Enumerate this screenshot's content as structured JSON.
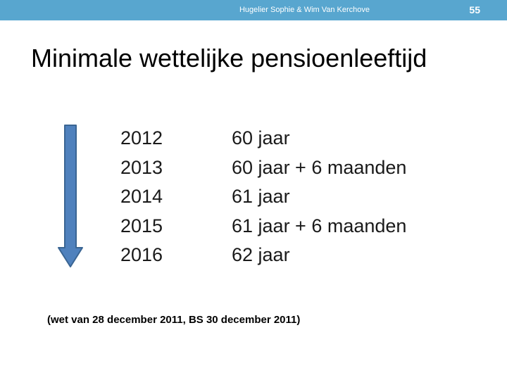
{
  "header": {
    "authors": "Hugelier Sophie & Wim Van Kerchove",
    "slide_number": "55"
  },
  "title": "Minimale wettelijke pensioenleeftijd",
  "arrow_icon": "down-arrow-icon",
  "colors": {
    "header_bar": "#58a6cf",
    "arrow_fill": "#4f81bd",
    "arrow_stroke": "#3a6593"
  },
  "table": {
    "rows": [
      {
        "year": "2012",
        "age": "60 jaar"
      },
      {
        "year": "2013",
        "age": "60 jaar + 6 maanden"
      },
      {
        "year": "2014",
        "age": "61 jaar"
      },
      {
        "year": "2015",
        "age": "61 jaar + 6 maanden"
      },
      {
        "year": "2016",
        "age": "62 jaar"
      }
    ]
  },
  "footnote": "(wet van 28 december 2011, BS 30 december 2011)"
}
